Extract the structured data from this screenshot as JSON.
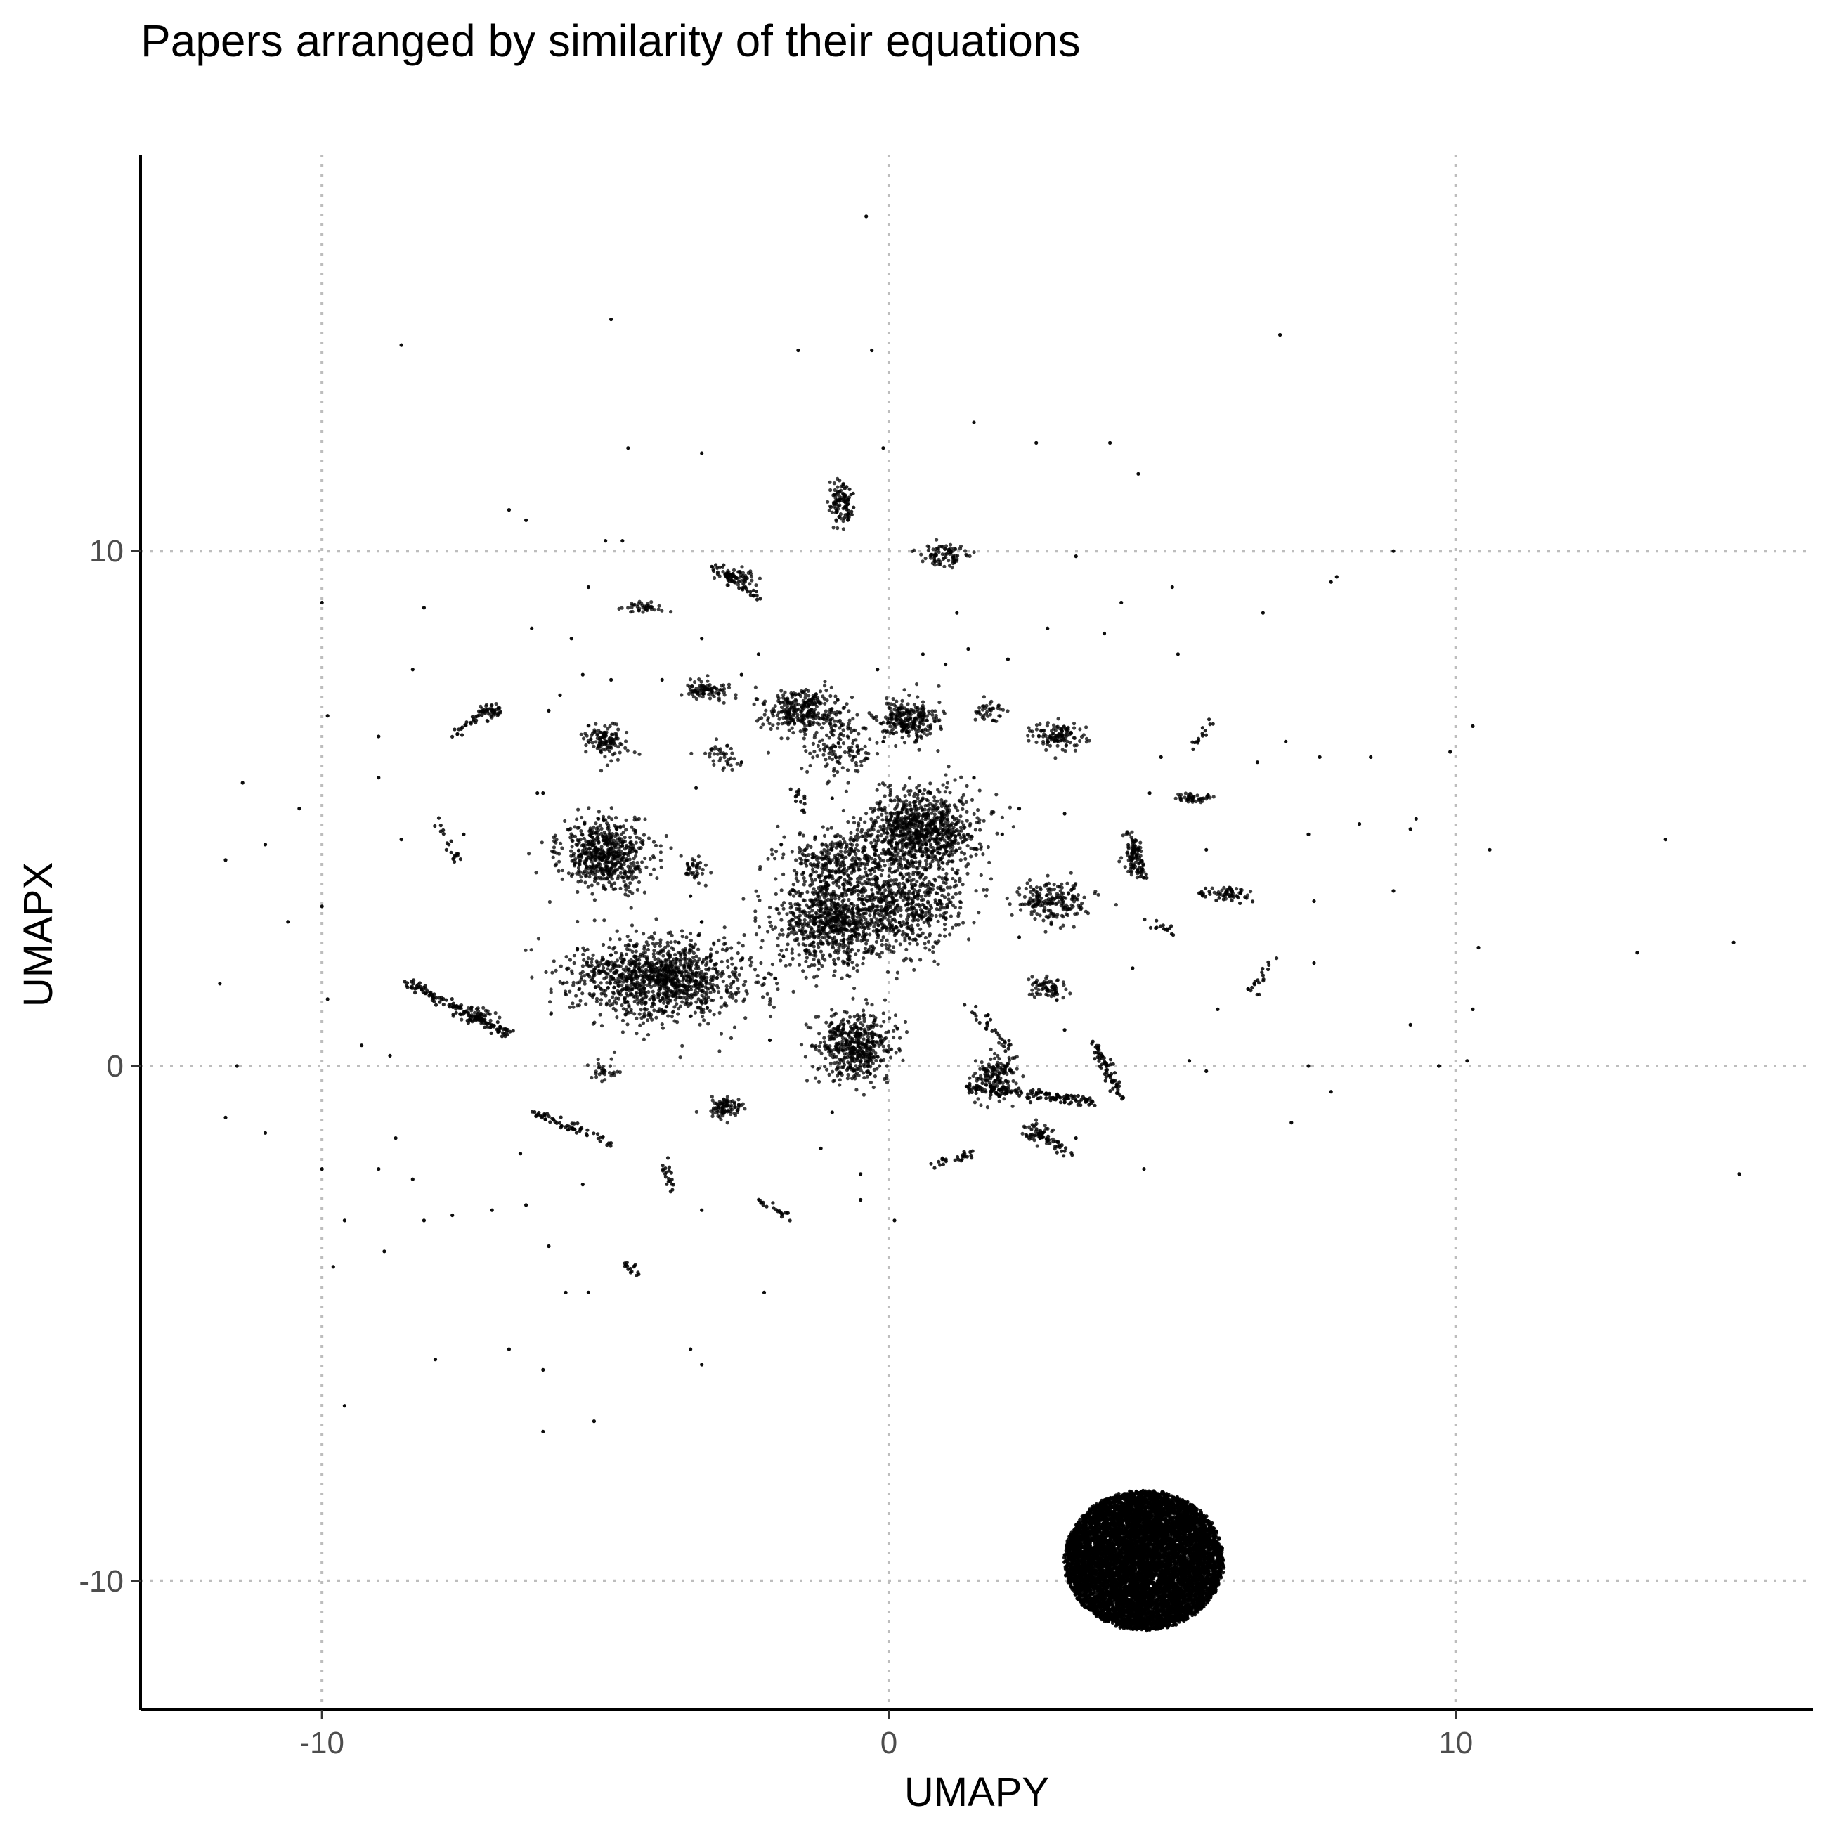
{
  "chart_data": {
    "type": "scatter",
    "title": "Papers arranged by similarity of their equations",
    "xlabel": "UMAPY",
    "ylabel": "UMAPX",
    "xlim": [
      -13.2,
      16.3
    ],
    "ylim": [
      -12.5,
      17.7
    ],
    "x_ticks": [
      -10,
      0,
      10
    ],
    "y_ticks": [
      -10,
      0,
      10
    ],
    "x_tick_labels": [
      "-10",
      "0",
      "10"
    ],
    "y_tick_labels": [
      "-10",
      "0",
      "10"
    ],
    "grid": "major, dotted",
    "legend": "none",
    "point_color": "#000000",
    "clusters": [
      {
        "cx": 4.5,
        "cy": -9.6,
        "rx": 1.4,
        "ry": 1.35,
        "n": 9000,
        "kind": "dense-disc"
      },
      {
        "cx": 0.6,
        "cy": 4.6,
        "rx": 0.9,
        "ry": 0.7,
        "n": 900
      },
      {
        "cx": -1.0,
        "cy": 2.8,
        "rx": 0.9,
        "ry": 0.8,
        "n": 800
      },
      {
        "cx": 0.3,
        "cy": 3.2,
        "rx": 0.9,
        "ry": 0.9,
        "n": 600
      },
      {
        "cx": -0.9,
        "cy": 4.0,
        "rx": 0.8,
        "ry": 0.5,
        "n": 300
      },
      {
        "cx": -4.0,
        "cy": 1.7,
        "rx": 1.4,
        "ry": 0.7,
        "n": 1200
      },
      {
        "cx": -5.0,
        "cy": 4.1,
        "rx": 0.7,
        "ry": 0.6,
        "n": 600
      },
      {
        "cx": -0.6,
        "cy": 0.4,
        "rx": 0.6,
        "ry": 0.6,
        "n": 500
      },
      {
        "cx": -1.5,
        "cy": 6.9,
        "rx": 0.6,
        "ry": 0.4,
        "n": 300
      },
      {
        "cx": 0.3,
        "cy": 6.7,
        "rx": 0.5,
        "ry": 0.4,
        "n": 260
      },
      {
        "cx": -0.9,
        "cy": 6.2,
        "rx": 0.6,
        "ry": 0.6,
        "n": 140
      },
      {
        "cx": -5.0,
        "cy": 6.3,
        "rx": 0.35,
        "ry": 0.3,
        "n": 120
      },
      {
        "cx": 3.0,
        "cy": 6.4,
        "rx": 0.4,
        "ry": 0.25,
        "n": 120
      },
      {
        "cx": 1.0,
        "cy": 9.9,
        "rx": 0.4,
        "ry": 0.2,
        "n": 90
      },
      {
        "cx": 1.9,
        "cy": -0.2,
        "rx": 0.35,
        "ry": 0.4,
        "n": 150
      },
      {
        "cx": 2.9,
        "cy": 3.2,
        "rx": 0.6,
        "ry": 0.4,
        "n": 200
      },
      {
        "cx": 4.3,
        "cy": 4.1,
        "rx": 0.15,
        "ry": 0.4,
        "n": 70
      },
      {
        "cx": -2.9,
        "cy": -0.8,
        "rx": 0.3,
        "ry": 0.2,
        "n": 90
      },
      {
        "cx": -3.2,
        "cy": 7.3,
        "rx": 0.4,
        "ry": 0.15,
        "n": 90
      },
      {
        "cx": -7.3,
        "cy": 1.0,
        "rx": 0.3,
        "ry": 0.15,
        "n": 60
      },
      {
        "cx": 2.8,
        "cy": 1.5,
        "rx": 0.3,
        "ry": 0.2,
        "n": 70
      },
      {
        "cx": -2.7,
        "cy": 9.5,
        "rx": 0.3,
        "ry": 0.15,
        "n": 60
      },
      {
        "cx": -0.9,
        "cy": 10.9,
        "rx": 0.15,
        "ry": 0.4,
        "n": 60
      },
      {
        "cx": 5.4,
        "cy": 5.2,
        "rx": 0.3,
        "ry": 0.1,
        "n": 50
      },
      {
        "cx": -4.3,
        "cy": 8.9,
        "rx": 0.3,
        "ry": 0.1,
        "n": 40
      },
      {
        "cx": -7.0,
        "cy": 6.9,
        "rx": 0.2,
        "ry": 0.15,
        "n": 40
      },
      {
        "cx": -5.0,
        "cy": -0.1,
        "rx": 0.2,
        "ry": 0.15,
        "n": 30
      },
      {
        "cx": 1.8,
        "cy": 6.9,
        "rx": 0.25,
        "ry": 0.2,
        "n": 40
      },
      {
        "cx": 6.0,
        "cy": 3.4,
        "rx": 0.3,
        "ry": 0.1,
        "n": 40
      },
      {
        "cx": 2.6,
        "cy": -1.3,
        "rx": 0.3,
        "ry": 0.2,
        "n": 40
      },
      {
        "cx": -3.4,
        "cy": 3.8,
        "rx": 0.3,
        "ry": 0.2,
        "n": 40
      },
      {
        "cx": -2.9,
        "cy": 6.0,
        "rx": 0.3,
        "ry": 0.3,
        "n": 40
      }
    ],
    "segments": [
      {
        "x1": -8.5,
        "y1": 1.6,
        "x2": -6.7,
        "y2": 0.6,
        "n": 120
      },
      {
        "x1": 1.4,
        "y1": -0.4,
        "x2": 3.6,
        "y2": -0.7,
        "n": 150
      },
      {
        "x1": 3.6,
        "y1": 0.5,
        "x2": 4.1,
        "y2": -0.6,
        "n": 70
      },
      {
        "x1": -6.3,
        "y1": -0.9,
        "x2": -4.9,
        "y2": -1.5,
        "n": 60
      },
      {
        "x1": -0.8,
        "y1": 11.3,
        "x2": -0.7,
        "y2": 10.6,
        "n": 40
      },
      {
        "x1": 4.3,
        "y1": 4.4,
        "x2": 4.5,
        "y2": 3.6,
        "n": 40
      },
      {
        "x1": -7.7,
        "y1": 6.4,
        "x2": -7.1,
        "y2": 6.9,
        "n": 30
      },
      {
        "x1": 2.5,
        "y1": -1.2,
        "x2": 3.2,
        "y2": -1.7,
        "n": 40
      },
      {
        "x1": -3.1,
        "y1": 9.7,
        "x2": -2.3,
        "y2": 9.1,
        "n": 40
      },
      {
        "x1": 1.4,
        "y1": 1.2,
        "x2": 2.2,
        "y2": 0.3,
        "n": 30
      },
      {
        "x1": -4.0,
        "y1": -1.9,
        "x2": -3.8,
        "y2": -2.4,
        "n": 20
      },
      {
        "x1": -2.3,
        "y1": -2.6,
        "x2": -1.7,
        "y2": -3.0,
        "n": 20
      },
      {
        "x1": 0.8,
        "y1": -1.9,
        "x2": 1.6,
        "y2": -1.7,
        "n": 25
      },
      {
        "x1": 5.4,
        "y1": 3.4,
        "x2": 6.3,
        "y2": 3.2,
        "n": 25
      },
      {
        "x1": -8.0,
        "y1": 4.8,
        "x2": -7.6,
        "y2": 4.0,
        "n": 20
      },
      {
        "x1": 6.8,
        "y1": 2.2,
        "x2": 6.4,
        "y2": 1.4,
        "n": 20
      },
      {
        "x1": 5.4,
        "y1": 6.2,
        "x2": 5.7,
        "y2": 6.7,
        "n": 15
      },
      {
        "x1": -4.7,
        "y1": -3.8,
        "x2": -4.4,
        "y2": -4.1,
        "n": 15
      },
      {
        "x1": 4.5,
        "y1": 2.8,
        "x2": 5.1,
        "y2": 2.6,
        "n": 15
      },
      {
        "x1": -1.4,
        "y1": 4.9,
        "x2": -1.7,
        "y2": 5.4,
        "n": 15
      }
    ],
    "scatter_points": [
      [
        -0.4,
        16.5
      ],
      [
        -4.9,
        14.5
      ],
      [
        6.9,
        14.2
      ],
      [
        -8.6,
        14.0
      ],
      [
        -1.6,
        13.9
      ],
      [
        -0.3,
        13.9
      ],
      [
        1.5,
        12.5
      ],
      [
        2.6,
        12.1
      ],
      [
        3.9,
        12.1
      ],
      [
        -4.6,
        12.0
      ],
      [
        -3.3,
        11.9
      ],
      [
        -0.1,
        12.0
      ],
      [
        -5.0,
        10.2
      ],
      [
        -6.4,
        10.6
      ],
      [
        -6.7,
        10.8
      ],
      [
        4.4,
        11.5
      ],
      [
        8.9,
        10.0
      ],
      [
        7.8,
        9.4
      ],
      [
        -10.0,
        9.0
      ],
      [
        -8.2,
        8.9
      ],
      [
        -5.6,
        8.3
      ],
      [
        -8.4,
        7.7
      ],
      [
        -9.0,
        6.4
      ],
      [
        -9.9,
        6.8
      ],
      [
        -11.4,
        5.5
      ],
      [
        -10.4,
        5.0
      ],
      [
        -11.0,
        4.3
      ],
      [
        -11.7,
        4.0
      ],
      [
        -9.0,
        5.6
      ],
      [
        -8.6,
        4.4
      ],
      [
        -10.6,
        2.8
      ],
      [
        -11.8,
        1.6
      ],
      [
        -9.9,
        1.3
      ],
      [
        -10.0,
        3.1
      ],
      [
        -9.3,
        0.4
      ],
      [
        -8.8,
        0.2
      ],
      [
        -11.5,
        0.0
      ],
      [
        -11.7,
        -1.0
      ],
      [
        -11.0,
        -1.3
      ],
      [
        -9.0,
        -2.0
      ],
      [
        -8.7,
        -1.4
      ],
      [
        -8.4,
        -2.2
      ],
      [
        -10.0,
        -2.0
      ],
      [
        -9.6,
        -3.0
      ],
      [
        -8.2,
        -3.0
      ],
      [
        -9.8,
        -3.9
      ],
      [
        -8.9,
        -3.6
      ],
      [
        -8.0,
        -5.7
      ],
      [
        -6.7,
        -5.5
      ],
      [
        -6.1,
        -5.9
      ],
      [
        -9.6,
        -6.6
      ],
      [
        -6.1,
        -7.1
      ],
      [
        -5.2,
        -6.9
      ],
      [
        -3.3,
        -5.8
      ],
      [
        -3.5,
        -5.5
      ],
      [
        -5.7,
        -4.4
      ],
      [
        -2.2,
        -4.4
      ],
      [
        -6.4,
        -2.7
      ],
      [
        -7.0,
        -2.8
      ],
      [
        -6.0,
        -3.5
      ],
      [
        -1.2,
        -1.6
      ],
      [
        -0.5,
        -2.1
      ],
      [
        0.1,
        -3.0
      ],
      [
        -0.5,
        -2.6
      ],
      [
        3.3,
        -1.4
      ],
      [
        4.5,
        -2.0
      ],
      [
        5.3,
        0.1
      ],
      [
        5.6,
        -0.1
      ],
      [
        7.4,
        0.0
      ],
      [
        7.8,
        -0.5
      ],
      [
        7.1,
        -1.1
      ],
      [
        9.7,
        0.0
      ],
      [
        10.2,
        0.1
      ],
      [
        9.2,
        0.8
      ],
      [
        10.3,
        1.1
      ],
      [
        10.4,
        2.3
      ],
      [
        13.2,
        2.2
      ],
      [
        14.9,
        2.4
      ],
      [
        15.0,
        -2.1
      ],
      [
        13.7,
        4.4
      ],
      [
        10.6,
        4.2
      ],
      [
        9.2,
        4.6
      ],
      [
        9.3,
        4.8
      ],
      [
        9.9,
        6.1
      ],
      [
        10.3,
        6.6
      ],
      [
        8.5,
        6.0
      ],
      [
        7.6,
        6.0
      ],
      [
        7.0,
        6.3
      ],
      [
        6.5,
        5.9
      ],
      [
        4.8,
        6.0
      ],
      [
        4.6,
        5.3
      ],
      [
        5.6,
        4.2
      ],
      [
        7.4,
        4.5
      ],
      [
        8.3,
        4.7
      ],
      [
        7.5,
        3.2
      ],
      [
        7.5,
        2.0
      ],
      [
        8.9,
        3.4
      ],
      [
        5.8,
        1.1
      ],
      [
        4.3,
        1.9
      ],
      [
        3.1,
        0.7
      ],
      [
        3.1,
        4.9
      ],
      [
        2.3,
        5.0
      ],
      [
        2.1,
        7.9
      ],
      [
        1.0,
        7.8
      ],
      [
        1.4,
        8.1
      ],
      [
        2.8,
        8.5
      ],
      [
        3.8,
        8.4
      ],
      [
        4.1,
        9.0
      ],
      [
        5.1,
        8.0
      ],
      [
        5.0,
        9.3
      ],
      [
        7.9,
        9.5
      ],
      [
        6.6,
        8.8
      ],
      [
        -5.8,
        7.2
      ],
      [
        -4.9,
        7.5
      ],
      [
        -4.0,
        7.5
      ],
      [
        -6.0,
        6.9
      ],
      [
        -6.1,
        5.3
      ],
      [
        -5.4,
        7.6
      ],
      [
        -2.6,
        5.9
      ],
      [
        -3.4,
        5.4
      ],
      [
        -6.2,
        5.3
      ],
      [
        -7.5,
        4.5
      ],
      [
        -3.3,
        2.8
      ],
      [
        -2.0,
        1.7
      ],
      [
        -2.1,
        0.5
      ],
      [
        -1.0,
        -0.9
      ],
      [
        -3.3,
        -2.8
      ],
      [
        -5.4,
        -2.3
      ],
      [
        -6.5,
        -1.7
      ],
      [
        -7.7,
        -2.9
      ],
      [
        -5.3,
        -4.4
      ],
      [
        -4.8,
        4.6
      ],
      [
        -2.6,
        7.6
      ],
      [
        -2.3,
        8.0
      ],
      [
        -0.2,
        7.7
      ],
      [
        0.6,
        8.0
      ],
      [
        -4.7,
        10.2
      ],
      [
        -3.3,
        8.3
      ],
      [
        1.2,
        8.8
      ],
      [
        3.3,
        9.9
      ],
      [
        -1.0,
        5.2
      ],
      [
        -1.9,
        4.3
      ],
      [
        2.0,
        4.5
      ],
      [
        2.3,
        2.5
      ],
      [
        -0.1,
        6.3
      ],
      [
        1.5,
        5.6
      ],
      [
        -3.5,
        3.3
      ],
      [
        -5.3,
        9.3
      ],
      [
        -6.3,
        8.5
      ]
    ]
  }
}
